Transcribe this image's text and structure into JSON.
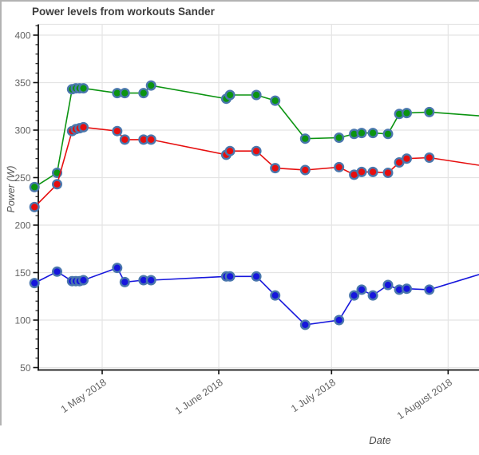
{
  "chart_data": {
    "type": "line",
    "title": "Power levels from workouts Sander",
    "xlabel": "Date",
    "ylabel": "Power (W)",
    "legend": "none",
    "grid": true,
    "ylim": [
      48,
      411
    ],
    "y_ticks": [
      50,
      100,
      150,
      200,
      250,
      300,
      350,
      400
    ],
    "y_minor_step": 10,
    "x_tick_labels": [
      "1 May 2018",
      "1 June 2018",
      "1 July 2018",
      "1 August 2018"
    ],
    "x_tick_dates": [
      "2018-05-01",
      "2018-06-01",
      "2018-07-01",
      "2018-08-01"
    ],
    "marker_edge_color": "#4a77ad",
    "colors": {
      "grid": "#e4e4e4",
      "axis": "#111111",
      "tick_label": "#636363",
      "title": "#3d3d3d",
      "axis_label": "#555555",
      "frame": "#b3b3b3",
      "background": "#ffffff"
    },
    "dates": [
      "2018-04-13",
      "2018-04-19",
      "2018-04-23",
      "2018-04-24",
      "2018-04-25",
      "2018-04-26",
      "2018-05-05",
      "2018-05-07",
      "2018-05-12",
      "2018-05-14",
      "2018-06-03",
      "2018-06-04",
      "2018-06-11",
      "2018-06-16",
      "2018-06-24",
      "2018-07-03",
      "2018-07-07",
      "2018-07-09",
      "2018-07-12",
      "2018-07-16",
      "2018-07-19",
      "2018-07-21",
      "2018-07-27"
    ],
    "series": [
      {
        "name": "green-series",
        "color": "#0b9411",
        "values": [
          240,
          255,
          343,
          344,
          344,
          344,
          339,
          339,
          339,
          347,
          333,
          337,
          337,
          331,
          291,
          292,
          296,
          297,
          297,
          296,
          317,
          318,
          319
        ],
        "right_edge_value": 315
      },
      {
        "name": "red-series",
        "color": "#e60e0e",
        "values": [
          219,
          243,
          299,
          301,
          302,
          303,
          299,
          290,
          290,
          290,
          274,
          278,
          278,
          260,
          258,
          261,
          253,
          256,
          256,
          255,
          266,
          270,
          271
        ],
        "right_edge_value": 263
      },
      {
        "name": "blue-series",
        "color": "#1616dc",
        "values": [
          139,
          151,
          141,
          141,
          141,
          142,
          155,
          140,
          142,
          142,
          146,
          146,
          146,
          126,
          95,
          100,
          126,
          132,
          126,
          137,
          132,
          133,
          132
        ],
        "right_edge_value": 148
      }
    ]
  }
}
